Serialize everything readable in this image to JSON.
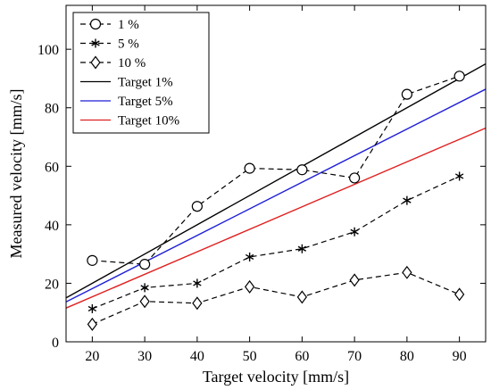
{
  "chart_data": {
    "type": "line",
    "title": "",
    "xlabel": "Target velocity [mm/s]",
    "ylabel": "Measured velocity [mm/s]",
    "xlim": [
      15,
      95
    ],
    "ylim": [
      0,
      115
    ],
    "xticks": [
      20,
      30,
      40,
      50,
      60,
      70,
      80,
      90
    ],
    "yticks": [
      0,
      20,
      40,
      60,
      80,
      100
    ],
    "grid": false,
    "legend_position": "top-left",
    "x": [
      20,
      30,
      40,
      50,
      60,
      70,
      80,
      90
    ],
    "series": [
      {
        "name": "1 %",
        "values": [
          27.8,
          26.5,
          46.3,
          59.3,
          58.8,
          56.0,
          84.6,
          90.8
        ],
        "marker": "circle",
        "line": "dashed",
        "color": "#000000"
      },
      {
        "name": "5 %",
        "values": [
          11.3,
          18.5,
          20.0,
          29.0,
          31.8,
          37.6,
          48.3,
          56.6
        ],
        "marker": "asterisk",
        "line": "dashed",
        "color": "#000000"
      },
      {
        "name": "10 %",
        "values": [
          6.0,
          13.8,
          13.2,
          18.8,
          15.3,
          21.1,
          23.7,
          16.2
        ],
        "marker": "diamond",
        "line": "dashed",
        "color": "#000000"
      },
      {
        "name": "Target 1%",
        "slope": 1.0,
        "line": "solid",
        "color": "#000000"
      },
      {
        "name": "Target 5%",
        "slope": 0.909,
        "line": "solid",
        "color": "#1f1fd6"
      },
      {
        "name": "Target 10%",
        "slope": 0.769,
        "line": "solid",
        "color": "#e02020"
      }
    ]
  }
}
